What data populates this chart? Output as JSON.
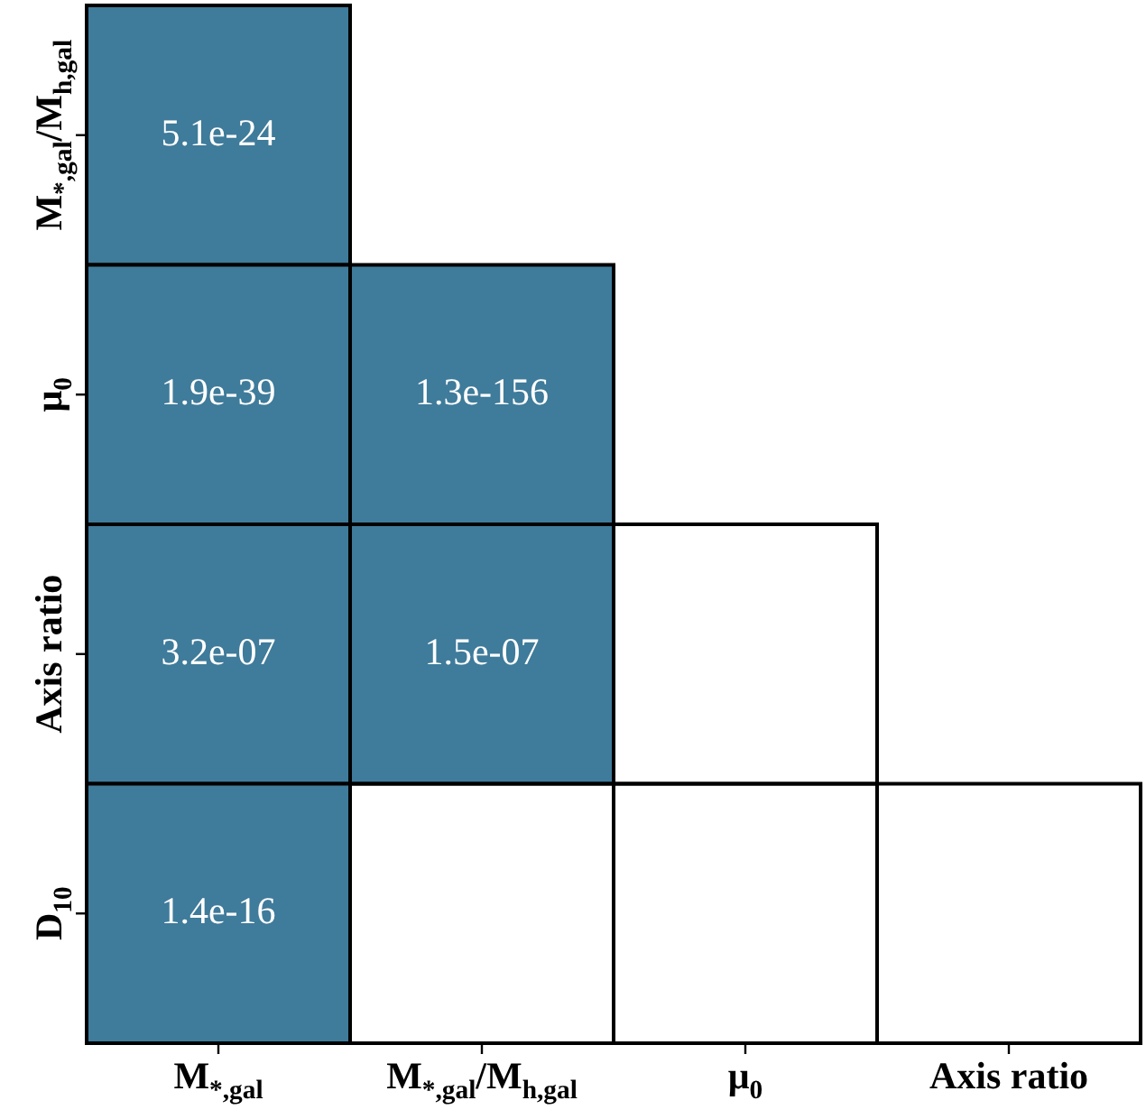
{
  "chart_data": {
    "type": "heatmap",
    "color": "#3f7b9a",
    "categories": [
      "M$_{*,gal}$",
      "M$_{*,gal}$/M$_{h,gal}$",
      "μ$_{0}$",
      "Axis ratio"
    ],
    "y_categories": [
      "M$_{*,gal}$/M$_{h,gal}$",
      "μ$_{0}$",
      "Axis ratio",
      "D$_{10}$"
    ],
    "cells": [
      [
        5.1e-24,
        null,
        null,
        null
      ],
      [
        1.9e-39,
        1.3e-156,
        null,
        null
      ],
      [
        3.2e-07,
        1.5e-07,
        null,
        null
      ],
      [
        1.4e-16,
        null,
        null,
        null
      ]
    ],
    "data_labels": true
  }
}
